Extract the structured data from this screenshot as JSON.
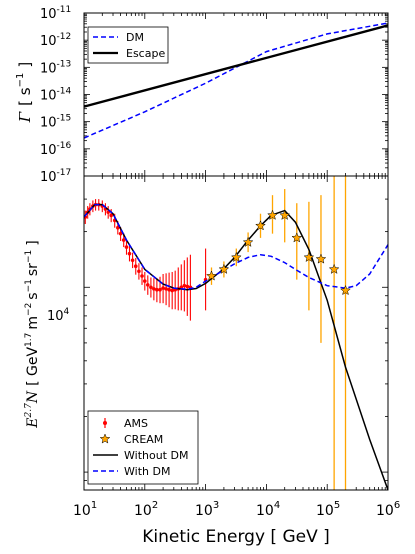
{
  "chart_data": [
    {
      "type": "line",
      "xscale": "log",
      "yscale": "log",
      "xlim": [
        10,
        1000000
      ],
      "ylim": [
        1e-17,
        1e-11
      ],
      "ylabel_symbol": "Γ",
      "ylabel_unit": "[ s",
      "ylabel_unit_exp": "−1",
      "ylabel_unit_close": "]",
      "ytick_exponents": [
        "-17",
        "-16",
        "-15",
        "-14",
        "-13",
        "-12",
        "-11"
      ],
      "legend": {
        "placement": "upper-left",
        "entries": [
          "DM",
          "Escape"
        ]
      },
      "series": [
        {
          "name": "DM",
          "style": "dashed",
          "color": "#0000ff",
          "x": [
            10,
            100,
            1000,
            10000,
            100000,
            1000000
          ],
          "y": [
            2.5e-16,
            2.3e-15,
            2.6e-14,
            3.8e-13,
            1.7e-12,
            4.3e-12
          ]
        },
        {
          "name": "Escape",
          "style": "solid",
          "color": "#000000",
          "x": [
            10,
            1000000
          ],
          "y": [
            3.6e-15,
            3.5e-12
          ]
        }
      ]
    },
    {
      "type": "line",
      "xscale": "log",
      "yscale": "log",
      "xlim": [
        10,
        1000000
      ],
      "ylim": [
        800,
        40000
      ],
      "ylabel_math": "E",
      "ylabel_math_exp": "2.7",
      "ylabel_math_var": "N",
      "ylabel_unit": "[ GeV",
      "ylabel_unit_exp": "1.7",
      "ylabel_unit_m": "m",
      "ylabel_unit_m_exp": "−2",
      "ylabel_unit_s": "s",
      "ylabel_unit_s_exp": "−1",
      "ylabel_unit_sr": "sr",
      "ylabel_unit_sr_exp": "−1",
      "ylabel_unit_close": "]",
      "ytick_labels": [
        {
          "base": "10",
          "exp": "4"
        }
      ],
      "xlabel": "Kinetic Energy [ GeV ]",
      "xtick_labels": [
        {
          "base": "10",
          "exp": "1"
        },
        {
          "base": "10",
          "exp": "2"
        },
        {
          "base": "10",
          "exp": "3"
        },
        {
          "base": "10",
          "exp": "4"
        },
        {
          "base": "10",
          "exp": "5"
        },
        {
          "base": "10",
          "exp": "6"
        }
      ],
      "legend": {
        "placement": "lower-left",
        "entries": [
          {
            "label": "AMS",
            "marker": "errorbar",
            "color": "#ff0000"
          },
          {
            "label": "CREAM",
            "marker": "star",
            "color": "#ffa500"
          },
          {
            "label": "Without DM",
            "style": "solid",
            "color": "#000000"
          },
          {
            "label": "With DM",
            "style": "dashed",
            "color": "#0000ff"
          }
        ]
      },
      "series": [
        {
          "name": "AMS",
          "marker": "errorbar",
          "color": "#ff0000",
          "points": [
            {
              "x": 10.5,
              "y": 24000,
              "lo": 22000,
              "hi": 26000
            },
            {
              "x": 11.5,
              "y": 25500,
              "lo": 23500,
              "hi": 27500
            },
            {
              "x": 12.5,
              "y": 26500,
              "lo": 24500,
              "hi": 28500
            },
            {
              "x": 14,
              "y": 27500,
              "lo": 25500,
              "hi": 29500
            },
            {
              "x": 15.5,
              "y": 28000,
              "lo": 26000,
              "hi": 30000
            },
            {
              "x": 17.5,
              "y": 28000,
              "lo": 26000,
              "hi": 30000
            },
            {
              "x": 20,
              "y": 27500,
              "lo": 25500,
              "hi": 29500
            },
            {
              "x": 22.5,
              "y": 26500,
              "lo": 24500,
              "hi": 28500
            },
            {
              "x": 25,
              "y": 25500,
              "lo": 23500,
              "hi": 27500
            },
            {
              "x": 28,
              "y": 24500,
              "lo": 22500,
              "hi": 26500
            },
            {
              "x": 32,
              "y": 23000,
              "lo": 21000,
              "hi": 25000
            },
            {
              "x": 36,
              "y": 21000,
              "lo": 19300,
              "hi": 22800
            },
            {
              "x": 40,
              "y": 19500,
              "lo": 17800,
              "hi": 21200
            },
            {
              "x": 45,
              "y": 18000,
              "lo": 16500,
              "hi": 19600
            },
            {
              "x": 50,
              "y": 16500,
              "lo": 15000,
              "hi": 18000
            },
            {
              "x": 56,
              "y": 15200,
              "lo": 13800,
              "hi": 16700
            },
            {
              "x": 63,
              "y": 14000,
              "lo": 12700,
              "hi": 15400
            },
            {
              "x": 71,
              "y": 13000,
              "lo": 11700,
              "hi": 14400
            },
            {
              "x": 80,
              "y": 12200,
              "lo": 11000,
              "hi": 13500
            },
            {
              "x": 90,
              "y": 11500,
              "lo": 10300,
              "hi": 12800
            },
            {
              "x": 100,
              "y": 10800,
              "lo": 9600,
              "hi": 12100
            },
            {
              "x": 112,
              "y": 10300,
              "lo": 9100,
              "hi": 11600
            },
            {
              "x": 126,
              "y": 10000,
              "lo": 8800,
              "hi": 11300
            },
            {
              "x": 141,
              "y": 9800,
              "lo": 8500,
              "hi": 11200
            },
            {
              "x": 158,
              "y": 9700,
              "lo": 8300,
              "hi": 11200
            },
            {
              "x": 178,
              "y": 9700,
              "lo": 8200,
              "hi": 11400
            },
            {
              "x": 200,
              "y": 9900,
              "lo": 8200,
              "hi": 11800
            },
            {
              "x": 224,
              "y": 9800,
              "lo": 8000,
              "hi": 11900
            },
            {
              "x": 251,
              "y": 9700,
              "lo": 7800,
              "hi": 12000
            },
            {
              "x": 282,
              "y": 9600,
              "lo": 7600,
              "hi": 12100
            },
            {
              "x": 316,
              "y": 9700,
              "lo": 7600,
              "hi": 12300
            },
            {
              "x": 355,
              "y": 9800,
              "lo": 7500,
              "hi": 12800
            },
            {
              "x": 398,
              "y": 10000,
              "lo": 7500,
              "hi": 13300
            },
            {
              "x": 447,
              "y": 10200,
              "lo": 7400,
              "hi": 14000
            },
            {
              "x": 500,
              "y": 10100,
              "lo": 7000,
              "hi": 14500
            },
            {
              "x": 562,
              "y": 10000,
              "lo": 6600,
              "hi": 15000
            },
            {
              "x": 1000,
              "y": 11000,
              "lo": 7500,
              "hi": 16200
            }
          ]
        },
        {
          "name": "CREAM",
          "marker": "star",
          "color": "#ffa500",
          "points": [
            {
              "x": 1250,
              "y": 11500,
              "lo": 10300,
              "hi": 12800
            },
            {
              "x": 2000,
              "y": 12500,
              "lo": 11300,
              "hi": 13800
            },
            {
              "x": 3200,
              "y": 14500,
              "lo": 13000,
              "hi": 16200
            },
            {
              "x": 5000,
              "y": 17500,
              "lo": 15500,
              "hi": 19800
            },
            {
              "x": 8000,
              "y": 21500,
              "lo": 18500,
              "hi": 25000
            },
            {
              "x": 12600,
              "y": 24500,
              "lo": 19500,
              "hi": 31500
            },
            {
              "x": 20000,
              "y": 24500,
              "lo": 17500,
              "hi": 34000
            },
            {
              "x": 31600,
              "y": 18500,
              "lo": 11000,
              "hi": 28500
            },
            {
              "x": 50000,
              "y": 14500,
              "lo": 7500,
              "hi": 29000
            },
            {
              "x": 79000,
              "y": 14200,
              "lo": 5000,
              "hi": 31500
            },
            {
              "x": 130000,
              "y": 12500,
              "lo": 800,
              "hi": 40000
            },
            {
              "x": 200000,
              "y": 9600,
              "lo": 800,
              "hi": 40000
            }
          ]
        },
        {
          "name": "Without DM",
          "style": "solid",
          "color": "#000000",
          "x": [
            10,
            15,
            20,
            30,
            50,
            100,
            200,
            300,
            500,
            700,
            1000,
            2000,
            3000,
            5000,
            8000,
            12000,
            20000,
            30000,
            50000,
            100000,
            200000,
            500000,
            1000000
          ],
          "y": [
            24000,
            28000,
            28000,
            25000,
            18000,
            12500,
            10400,
            9900,
            9700,
            9850,
            10500,
            12600,
            14500,
            18000,
            21500,
            24500,
            26000,
            22500,
            16000,
            8500,
            3700,
            1500,
            800
          ]
        },
        {
          "name": "With DM",
          "style": "dashed",
          "color": "#0000ff",
          "x": [
            10,
            15,
            20,
            30,
            50,
            100,
            200,
            300,
            500,
            700,
            1000,
            2000,
            3000,
            5000,
            8000,
            12000,
            20000,
            30000,
            50000,
            100000,
            200000,
            300000,
            500000,
            1000000
          ],
          "y": [
            24000,
            28000,
            28000,
            25000,
            18000,
            12500,
            10400,
            9900,
            9750,
            10000,
            10800,
            12400,
            13400,
            14500,
            15000,
            14700,
            13600,
            12500,
            11300,
            10200,
            9900,
            10200,
            11800,
            17000
          ]
        }
      ]
    }
  ]
}
